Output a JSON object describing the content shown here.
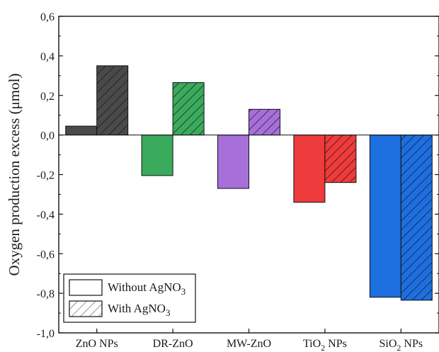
{
  "chart_data": {
    "type": "bar",
    "ylabel": "Oxygen production excess (μmol)",
    "ylim": [
      -1.0,
      0.6
    ],
    "yticks": [
      -1.0,
      -0.8,
      -0.6,
      -0.4,
      -0.2,
      0.0,
      0.2,
      0.4,
      0.6
    ],
    "ytick_labels": [
      "-1,0",
      "-0,8",
      "-0,6",
      "-0,4",
      "-0,2",
      "0,0",
      "0,2",
      "0,4",
      "0,6"
    ],
    "categories": [
      {
        "main": "ZnO NPs",
        "sub": "",
        "tail": ""
      },
      {
        "main": "DR-ZnO",
        "sub": "",
        "tail": ""
      },
      {
        "main": "MW-ZnO",
        "sub": "",
        "tail": ""
      },
      {
        "main": "TiO",
        "sub": "2",
        "tail": " NPs"
      },
      {
        "main": "SiO",
        "sub": "2",
        "tail": " NPs"
      }
    ],
    "colors": [
      "#4a4a4a",
      "#3aaa5c",
      "#a66fd9",
      "#ee3b3b",
      "#1d6fe0"
    ],
    "series": [
      {
        "name": "Without AgNO3",
        "hatched": false,
        "values": [
          0.045,
          -0.205,
          -0.27,
          -0.34,
          -0.82
        ]
      },
      {
        "name": "With AgNO3",
        "hatched": true,
        "values": [
          0.35,
          0.265,
          0.13,
          -0.24,
          -0.835
        ]
      }
    ],
    "legend": {
      "position": "bottom-left",
      "entries": [
        {
          "main": "Without AgNO",
          "sub": "3"
        },
        {
          "main": "With AgNO",
          "sub": "3"
        }
      ]
    },
    "grid": false
  }
}
